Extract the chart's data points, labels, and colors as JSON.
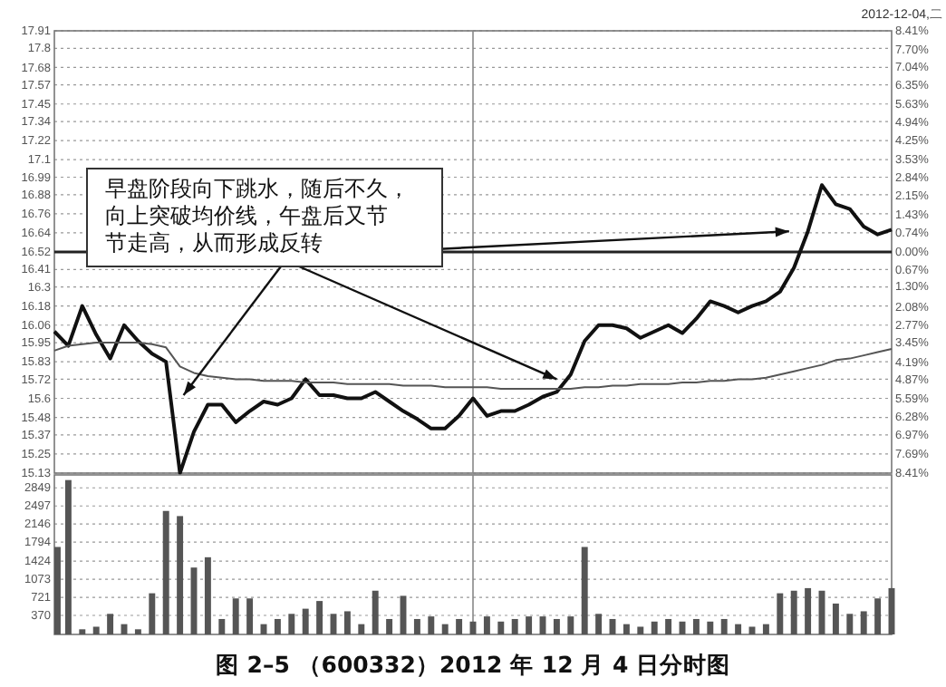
{
  "chart_data": [
    {
      "type": "line",
      "title": "图 2–5 （600332）2012 年 12 月 4 日分时图",
      "categories": [
        null,
        null,
        null,
        null,
        null,
        null,
        null,
        null,
        null,
        null,
        null,
        null,
        null,
        null,
        null,
        null,
        null,
        null,
        null,
        null,
        null,
        null,
        null,
        null,
        null,
        null,
        null,
        null,
        null,
        null,
        null,
        null,
        null,
        null,
        null,
        null,
        null,
        null,
        null,
        null,
        null,
        null,
        null,
        null,
        null,
        null,
        null,
        null,
        null,
        null,
        null,
        null,
        null,
        null,
        null,
        null,
        null,
        null,
        null,
        null,
        null
      ],
      "series": [
        {
          "color": "#111111",
          "line_style": "solid",
          "values": [
            16.02,
            15.93,
            16.18,
            16.0,
            15.85,
            16.06,
            15.96,
            15.88,
            15.83,
            15.13,
            15.39,
            15.56,
            15.56,
            15.45,
            15.52,
            15.58,
            15.56,
            15.6,
            15.72,
            15.62,
            15.62,
            15.6,
            15.6,
            15.64,
            15.58,
            15.52,
            15.47,
            15.41,
            15.41,
            15.49,
            15.6,
            15.49,
            15.52,
            15.52,
            15.56,
            15.61,
            15.64,
            15.75,
            15.96,
            16.06,
            16.06,
            16.04,
            15.98,
            16.02,
            16.06,
            16.01,
            16.1,
            16.21,
            16.18,
            16.14,
            16.18,
            16.21,
            16.27,
            16.42,
            16.65,
            16.94,
            16.82,
            16.79,
            16.68,
            16.63,
            16.66
          ]
        },
        {
          "color": "#555555",
          "line_style": "solid",
          "values": [
            15.9,
            15.93,
            15.94,
            15.95,
            15.95,
            15.95,
            15.95,
            15.94,
            15.92,
            15.8,
            15.76,
            15.74,
            15.73,
            15.72,
            15.72,
            15.71,
            15.71,
            15.71,
            15.7,
            15.7,
            15.7,
            15.69,
            15.69,
            15.69,
            15.69,
            15.68,
            15.68,
            15.68,
            15.67,
            15.67,
            15.67,
            15.67,
            15.66,
            15.66,
            15.66,
            15.66,
            15.66,
            15.66,
            15.67,
            15.67,
            15.68,
            15.68,
            15.69,
            15.69,
            15.69,
            15.7,
            15.7,
            15.71,
            15.71,
            15.72,
            15.72,
            15.73,
            15.75,
            15.77,
            15.79,
            15.81,
            15.84,
            15.85,
            15.87,
            15.89,
            15.91
          ]
        }
      ],
      "ylim": [
        15.13,
        17.91
      ],
      "yticks": [
        17.91,
        17.8,
        17.68,
        17.57,
        17.45,
        17.34,
        17.22,
        17.1,
        16.99,
        16.88,
        16.76,
        16.64,
        16.52,
        16.41,
        16.3,
        16.18,
        16.06,
        15.95,
        15.83,
        15.72,
        15.6,
        15.48,
        15.37,
        15.25,
        15.13
      ],
      "y2lim": [
        -8.41,
        8.41
      ],
      "y2ticks": [
        {
          "value": 8.41,
          "label": "8.41%"
        },
        {
          "value": 7.7,
          "label": "7.70%"
        },
        {
          "value": 7.04,
          "label": "7.04%"
        },
        {
          "value": 6.35,
          "label": "6.35%"
        },
        {
          "value": 5.63,
          "label": "5.63%"
        },
        {
          "value": 4.94,
          "label": "4.94%"
        },
        {
          "value": 4.25,
          "label": "4.25%"
        },
        {
          "value": 3.53,
          "label": "3.53%"
        },
        {
          "value": 2.84,
          "label": "2.84%"
        },
        {
          "value": 2.15,
          "label": "2.15%"
        },
        {
          "value": 1.43,
          "label": "1.43%"
        },
        {
          "value": 0.74,
          "label": "0.74%"
        },
        {
          "value": 0,
          "label": "0.00%"
        },
        {
          "value": -0.67,
          "label": "0.67%"
        },
        {
          "value": -1.3,
          "label": "1.30%"
        },
        {
          "value": -2.08,
          "label": "2.08%"
        },
        {
          "value": -2.77,
          "label": "2.77%"
        },
        {
          "value": -3.45,
          "label": "3.45%"
        },
        {
          "value": -4.19,
          "label": "4.19%"
        },
        {
          "value": -4.87,
          "label": "4.87%"
        },
        {
          "value": -5.59,
          "label": "5.59%"
        },
        {
          "value": -6.28,
          "label": "6.28%"
        },
        {
          "value": -6.97,
          "label": "6.97%"
        },
        {
          "value": -7.69,
          "label": "7.69%"
        },
        {
          "value": -8.41,
          "label": "8.41%"
        }
      ],
      "grid": "y",
      "ref_lines": [
        {
          "axis": "y",
          "value": 16.52,
          "color": "#222222"
        }
      ],
      "annotations": [
        "早盘阶段向下跳水，随后不久，向上突破均价线，午盘后又节节走高，从而形成反转",
        "2012-12-04,二"
      ]
    },
    {
      "type": "bar",
      "categories": [
        null,
        null,
        null,
        null,
        null,
        null,
        null,
        null,
        null,
        null,
        null,
        null,
        null,
        null,
        null,
        null,
        null,
        null,
        null,
        null,
        null,
        null,
        null,
        null,
        null,
        null,
        null,
        null,
        null,
        null,
        null,
        null,
        null,
        null,
        null,
        null,
        null,
        null,
        null,
        null,
        null,
        null,
        null,
        null,
        null,
        null,
        null,
        null,
        null,
        null,
        null,
        null,
        null,
        null,
        null,
        null,
        null,
        null,
        null,
        null,
        null
      ],
      "color": "#555555",
      "values": [
        1700,
        3000,
        100,
        150,
        400,
        200,
        100,
        800,
        2400,
        2300,
        1300,
        1500,
        300,
        700,
        700,
        200,
        300,
        400,
        500,
        650,
        400,
        450,
        200,
        850,
        300,
        750,
        300,
        350,
        200,
        300,
        250,
        350,
        250,
        300,
        350,
        350,
        300,
        350,
        1700,
        400,
        300,
        200,
        150,
        250,
        300,
        250,
        300,
        250,
        300,
        200,
        150,
        200,
        800,
        850,
        900,
        850,
        600,
        400,
        450,
        700,
        900
      ],
      "ylim": [
        0,
        3100
      ],
      "yticks": [
        370,
        721,
        1073,
        1424,
        1794,
        2146,
        2497,
        2849
      ],
      "grid": "y"
    }
  ]
}
